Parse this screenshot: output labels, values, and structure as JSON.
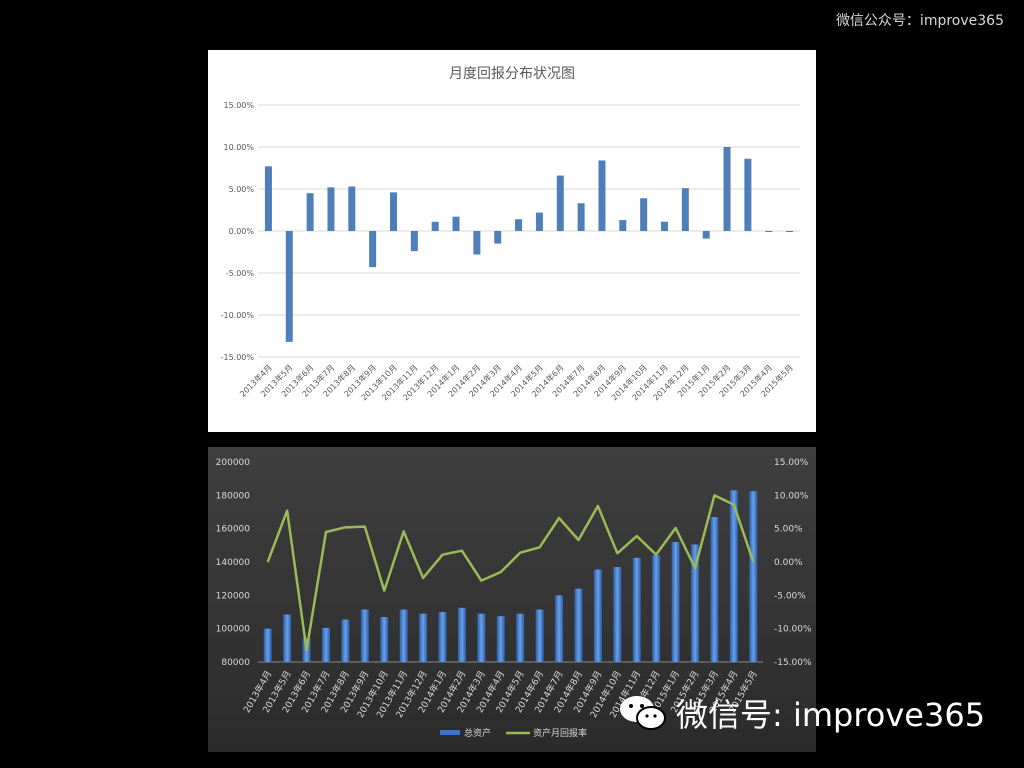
{
  "watermark_top": "微信公众号：improve365",
  "watermark_bottom": "微信号: improve365",
  "colors": {
    "bar": "#4f7fb8",
    "bar2": "#3b74c6",
    "line": "#9bbb59",
    "grid": "#d9d9d9",
    "dark_bg": "#3a3a3a"
  },
  "chart_data": [
    {
      "type": "bar",
      "title": "月度回报分布状况图",
      "categories": [
        "2013年4月",
        "2013年5月",
        "2013年6月",
        "2013年7月",
        "2013年8月",
        "2013年9月",
        "2013年10月",
        "2013年11月",
        "2013年12月",
        "2014年1月",
        "2014年2月",
        "2014年3月",
        "2014年4月",
        "2014年5月",
        "2014年6月",
        "2014年7月",
        "2014年8月",
        "2014年9月",
        "2014年10月",
        "2014年11月",
        "2014年12月",
        "2015年1月",
        "2015年2月",
        "2015年3月",
        "2015年4月",
        "2015年5月"
      ],
      "values": [
        7.7,
        -13.2,
        4.5,
        5.2,
        5.3,
        -4.3,
        4.6,
        -2.4,
        1.1,
        1.7,
        -2.8,
        -1.5,
        1.4,
        2.2,
        6.6,
        3.3,
        8.4,
        1.3,
        3.9,
        1.1,
        5.1,
        -0.9,
        10.0,
        8.6,
        -0.1,
        0.0
      ],
      "ylim": [
        -15,
        15
      ],
      "yticks": [
        "15.00%",
        "10.00%",
        "5.00%",
        "0.00%",
        "-5.00%",
        "-10.00%",
        "-15.00%"
      ],
      "ytick_values": [
        15,
        10,
        5,
        0,
        -5,
        -10,
        -15
      ],
      "grid": true
    },
    {
      "type": "bar+line",
      "categories": [
        "2013年4月",
        "2013年5月",
        "2013年6月",
        "2013年7月",
        "2013年8月",
        "2013年9月",
        "2013年10月",
        "2013年11月",
        "2013年12月",
        "2014年1月",
        "2014年2月",
        "2014年3月",
        "2014年4月",
        "2014年5月",
        "2014年6月",
        "2014年7月",
        "2014年8月",
        "2014年9月",
        "2014年10月",
        "2014年11月",
        "2014年12月",
        "2015年1月",
        "2015年2月",
        "2015年3月",
        "2015年4月",
        "2015年5月"
      ],
      "series": [
        {
          "name": "总资产",
          "kind": "bar",
          "axis": "left",
          "values": [
            100000,
            108500,
            94000,
            100500,
            105500,
            111500,
            107000,
            111500,
            109000,
            110000,
            112500,
            109000,
            107500,
            109000,
            111500,
            120000,
            124000,
            135500,
            137000,
            142500,
            144000,
            152000,
            150500,
            167000,
            183000,
            182500
          ]
        },
        {
          "name": "资产月回报率",
          "kind": "line",
          "axis": "right",
          "values": [
            0.0,
            7.7,
            -13.2,
            4.5,
            5.2,
            5.3,
            -4.3,
            4.6,
            -2.4,
            1.1,
            1.7,
            -2.8,
            -1.5,
            1.4,
            2.2,
            6.6,
            3.3,
            8.4,
            1.3,
            3.9,
            1.1,
            5.1,
            -0.9,
            10.0,
            8.6,
            0.0
          ]
        }
      ],
      "ylim_left": [
        80000,
        200000
      ],
      "yticks_left": [
        "200000",
        "180000",
        "160000",
        "140000",
        "120000",
        "100000",
        "80000"
      ],
      "ytick_values_left": [
        200000,
        180000,
        160000,
        140000,
        120000,
        100000,
        80000
      ],
      "ylim_right": [
        -15,
        15
      ],
      "yticks_right": [
        "15.00%",
        "10.00%",
        "5.00%",
        "0.00%",
        "-5.00%",
        "-10.00%",
        "-15.00%"
      ],
      "ytick_values_right": [
        15,
        10,
        5,
        0,
        -5,
        -10,
        -15
      ],
      "legend_position": "bottom",
      "grid": false
    }
  ]
}
